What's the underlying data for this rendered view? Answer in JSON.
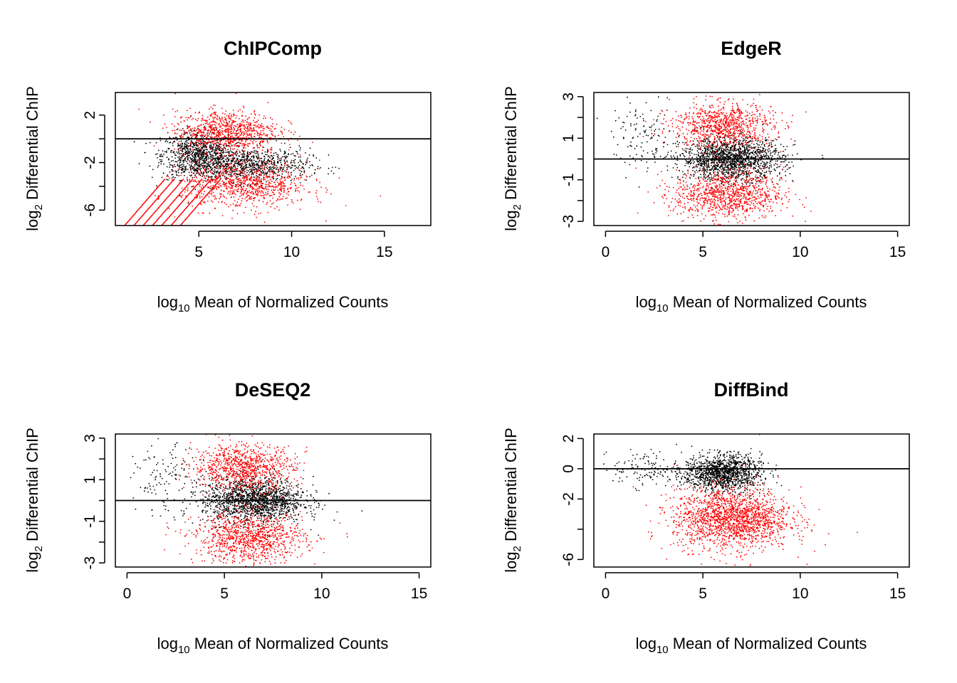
{
  "colors": {
    "significant": "#ff0000",
    "not_significant": "#000000",
    "frame": "#000000"
  },
  "chart_data": [
    {
      "type": "scatter",
      "title": "ChIPComp",
      "xlabel": {
        "prefix": "log",
        "sub": "10",
        "rest": " Mean of Normalized Counts"
      },
      "ylabel": {
        "prefix": "log",
        "sub": "2",
        "rest": " Differential ChIP"
      },
      "xlim": [
        0.5,
        17.5
      ],
      "ylim": [
        -7.3,
        3.9
      ],
      "xticks": [
        5,
        10,
        15
      ],
      "yticks": [
        2,
        -2,
        -6
      ],
      "ytick_minor": [
        0,
        -4
      ],
      "hline": 0,
      "series": [
        {
          "color": "#000000",
          "clouds": [
            {
              "cx": 5.0,
              "cy": -1.4,
              "sx": 1.0,
              "sy": 1.0,
              "n": 900
            },
            {
              "cx": 7.8,
              "cy": -2.2,
              "sx": 1.6,
              "sy": 0.7,
              "n": 800
            }
          ]
        },
        {
          "color": "#ff0000",
          "clouds": [
            {
              "cx": 6.5,
              "cy": 0.6,
              "sx": 1.4,
              "sy": 0.9,
              "n": 900
            },
            {
              "cx": 7.5,
              "cy": -3.9,
              "sx": 1.7,
              "sy": 1.0,
              "n": 900
            }
          ]
        }
      ],
      "diagonal_streaks": {
        "x_start": [
          1.0,
          1.5,
          2.0,
          2.5,
          3.0,
          3.5,
          4.0
        ],
        "slope": 1.8
      }
    },
    {
      "type": "scatter",
      "title": "EdgeR",
      "xlabel": {
        "prefix": "log",
        "sub": "10",
        "rest": " Mean of Normalized Counts"
      },
      "ylabel": {
        "prefix": "log",
        "sub": "2",
        "rest": " Differential ChIP"
      },
      "xlim": [
        -0.6,
        15.6
      ],
      "ylim": [
        -3.2,
        3.2
      ],
      "xticks": [
        0,
        5,
        10,
        15
      ],
      "yticks": [
        3,
        1,
        -1,
        -3
      ],
      "ytick_minor": [
        2,
        0,
        -2
      ],
      "hline": 0,
      "series": [
        {
          "color": "#000000",
          "clouds": [
            {
              "cx": 6.5,
              "cy": 0.0,
              "sx": 1.3,
              "sy": 0.5,
              "n": 1600
            },
            {
              "cx": 2.0,
              "cy": 1.0,
              "sx": 0.8,
              "sy": 0.8,
              "n": 120
            }
          ]
        },
        {
          "color": "#ff0000",
          "clouds": [
            {
              "cx": 6.0,
              "cy": 1.6,
              "sx": 1.3,
              "sy": 0.55,
              "n": 900
            },
            {
              "cx": 6.3,
              "cy": -1.7,
              "sx": 1.4,
              "sy": 0.6,
              "n": 1000
            }
          ]
        }
      ]
    },
    {
      "type": "scatter",
      "title": "DeSEQ2",
      "xlabel": {
        "prefix": "log",
        "sub": "10",
        "rest": " Mean of Normalized Counts"
      },
      "ylabel": {
        "prefix": "log",
        "sub": "2",
        "rest": " Differential ChIP"
      },
      "xlim": [
        -0.6,
        15.6
      ],
      "ylim": [
        -3.2,
        3.2
      ],
      "xticks": [
        0,
        5,
        10,
        15
      ],
      "yticks": [
        3,
        1,
        -1,
        -3
      ],
      "ytick_minor": [
        2,
        0,
        -2
      ],
      "hline": 0,
      "series": [
        {
          "color": "#000000",
          "clouds": [
            {
              "cx": 6.5,
              "cy": 0.0,
              "sx": 1.3,
              "sy": 0.55,
              "n": 1600
            },
            {
              "cx": 2.0,
              "cy": 1.0,
              "sx": 0.8,
              "sy": 0.8,
              "n": 120
            }
          ]
        },
        {
          "color": "#ff0000",
          "clouds": [
            {
              "cx": 6.0,
              "cy": 1.6,
              "sx": 1.3,
              "sy": 0.55,
              "n": 900
            },
            {
              "cx": 6.3,
              "cy": -1.8,
              "sx": 1.4,
              "sy": 0.6,
              "n": 1000
            }
          ]
        }
      ]
    },
    {
      "type": "scatter",
      "title": "DiffBind",
      "xlabel": {
        "prefix": "log",
        "sub": "10",
        "rest": " Mean of Normalized Counts"
      },
      "ylabel": {
        "prefix": "log",
        "sub": "2",
        "rest": " Differential ChIP"
      },
      "xlim": [
        -0.6,
        15.6
      ],
      "ylim": [
        -6.5,
        2.3
      ],
      "xticks": [
        0,
        5,
        10,
        15
      ],
      "yticks": [
        2,
        0,
        -2,
        -6
      ],
      "ytick_minor": [
        -4
      ],
      "hline": 0,
      "series": [
        {
          "color": "#000000",
          "clouds": [
            {
              "cx": 6.0,
              "cy": -0.3,
              "sx": 1.0,
              "sy": 0.6,
              "n": 1300
            },
            {
              "cx": 2.0,
              "cy": 0.0,
              "sx": 0.8,
              "sy": 0.6,
              "n": 120
            }
          ]
        },
        {
          "color": "#ff0000",
          "clouds": [
            {
              "cx": 6.5,
              "cy": -3.3,
              "sx": 1.5,
              "sy": 1.0,
              "n": 1800
            }
          ]
        }
      ]
    }
  ]
}
